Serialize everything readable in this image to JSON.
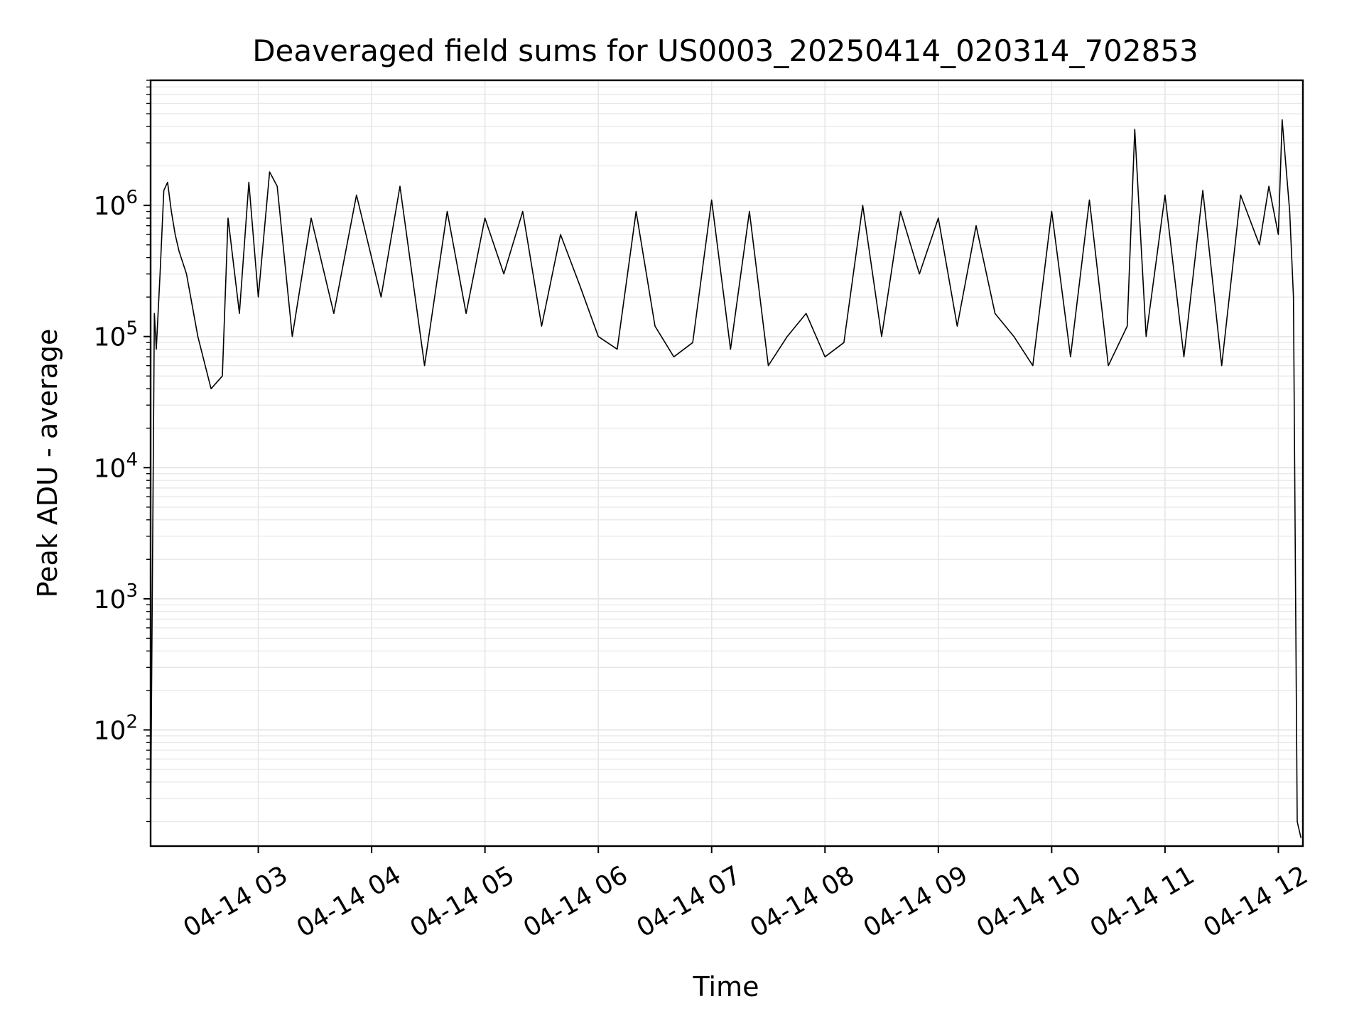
{
  "chart_data": {
    "type": "line",
    "title": "Deaveraged field sums for US0003_20250414_020314_702853",
    "xlabel": "Time",
    "ylabel": "Peak ADU - average",
    "yscale": "log",
    "ylim": [
      13,
      9000000
    ],
    "xlim": [
      "04-14 02:03",
      "04-14 12:13"
    ],
    "grid": true,
    "line_color": "#000000",
    "grid_color": "#e6e6e6",
    "x_ticks": [
      {
        "label": "04-14 03",
        "time": "04-14 03:00"
      },
      {
        "label": "04-14 04",
        "time": "04-14 04:00"
      },
      {
        "label": "04-14 05",
        "time": "04-14 05:00"
      },
      {
        "label": "04-14 06",
        "time": "04-14 06:00"
      },
      {
        "label": "04-14 07",
        "time": "04-14 07:00"
      },
      {
        "label": "04-14 08",
        "time": "04-14 08:00"
      },
      {
        "label": "04-14 09",
        "time": "04-14 09:00"
      },
      {
        "label": "04-14 10",
        "time": "04-14 10:00"
      },
      {
        "label": "04-14 11",
        "time": "04-14 11:00"
      },
      {
        "label": "04-14 12",
        "time": "04-14 12:00"
      }
    ],
    "y_ticks": [
      {
        "base": "10",
        "exp": "2",
        "value": 100
      },
      {
        "base": "10",
        "exp": "3",
        "value": 1000
      },
      {
        "base": "10",
        "exp": "4",
        "value": 10000
      },
      {
        "base": "10",
        "exp": "5",
        "value": 100000
      },
      {
        "base": "10",
        "exp": "6",
        "value": 1000000
      }
    ],
    "series": [
      {
        "x": [
          "04-14 02:03",
          "04-14 02:05",
          "04-14 02:06",
          "04-14 02:08",
          "04-14 02:10",
          "04-14 02:12",
          "04-14 02:14",
          "04-14 02:16",
          "04-14 02:18",
          "04-14 02:22",
          "04-14 02:28",
          "04-14 02:35",
          "04-14 02:41",
          "04-14 02:44",
          "04-14 02:50",
          "04-14 02:55",
          "04-14 03:00",
          "04-14 03:06",
          "04-14 03:10",
          "04-14 03:18",
          "04-14 03:28",
          "04-14 03:40",
          "04-14 03:52",
          "04-14 04:05",
          "04-14 04:15",
          "04-14 04:28",
          "04-14 04:40",
          "04-14 04:50",
          "04-14 05:00",
          "04-14 05:10",
          "04-14 05:20",
          "04-14 05:30",
          "04-14 05:40",
          "04-14 05:50",
          "04-14 06:00",
          "04-14 06:10",
          "04-14 06:20",
          "04-14 06:30",
          "04-14 06:40",
          "04-14 06:50",
          "04-14 07:00",
          "04-14 07:10",
          "04-14 07:20",
          "04-14 07:30",
          "04-14 07:40",
          "04-14 07:50",
          "04-14 08:00",
          "04-14 08:10",
          "04-14 08:20",
          "04-14 08:30",
          "04-14 08:40",
          "04-14 08:50",
          "04-14 09:00",
          "04-14 09:10",
          "04-14 09:20",
          "04-14 09:30",
          "04-14 09:40",
          "04-14 09:50",
          "04-14 10:00",
          "04-14 10:10",
          "04-14 10:20",
          "04-14 10:30",
          "04-14 10:40",
          "04-14 10:44",
          "04-14 10:50",
          "04-14 11:00",
          "04-14 11:10",
          "04-14 11:20",
          "04-14 11:30",
          "04-14 11:40",
          "04-14 11:50",
          "04-14 11:55",
          "04-14 12:00",
          "04-14 12:02",
          "04-14 12:04",
          "04-14 12:06",
          "04-14 12:08",
          "04-14 12:10",
          "04-14 12:12"
        ],
        "y": [
          20,
          150000,
          80000,
          300000,
          1300000,
          1500000,
          900000,
          600000,
          450000,
          300000,
          100000,
          40000,
          50000,
          800000,
          150000,
          1500000,
          200000,
          1800000,
          1400000,
          100000,
          800000,
          150000,
          1200000,
          200000,
          1400000,
          60000,
          900000,
          150000,
          800000,
          300000,
          900000,
          120000,
          600000,
          250000,
          100000,
          80000,
          900000,
          120000,
          70000,
          90000,
          1100000,
          80000,
          900000,
          60000,
          100000,
          150000,
          70000,
          90000,
          1000000,
          100000,
          900000,
          300000,
          800000,
          120000,
          700000,
          150000,
          100000,
          60000,
          900000,
          70000,
          1100000,
          60000,
          120000,
          3800000,
          100000,
          1200000,
          70000,
          1300000,
          60000,
          1200000,
          500000,
          1400000,
          600000,
          4500000,
          2000000,
          900000,
          200000,
          20,
          15
        ]
      }
    ]
  }
}
